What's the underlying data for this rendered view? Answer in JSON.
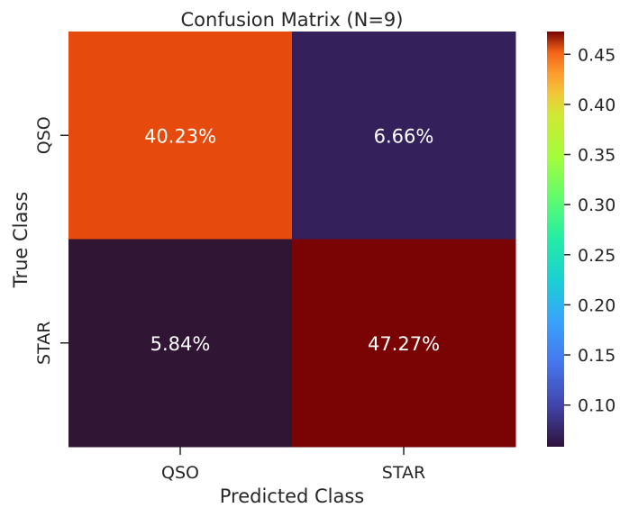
{
  "chart_data": {
    "type": "heatmap",
    "title": "Confusion Matrix (N=9)",
    "xlabel": "Predicted Class",
    "ylabel": "True Class",
    "x_categories": [
      "QSO",
      "STAR"
    ],
    "y_categories": [
      "QSO",
      "STAR"
    ],
    "values": [
      [
        0.4023,
        0.0666
      ],
      [
        0.0584,
        0.4727
      ]
    ],
    "cell_labels": [
      [
        "40.23%",
        "6.66%"
      ],
      [
        "5.84%",
        "47.27%"
      ]
    ],
    "colormap": "turbo",
    "colorbar": {
      "range": [
        0.0584,
        0.4727
      ],
      "ticks": [
        0.1,
        0.15,
        0.2,
        0.25,
        0.3,
        0.35,
        0.4,
        0.45
      ],
      "tick_labels": [
        "0.10",
        "0.15",
        "0.20",
        "0.25",
        "0.30",
        "0.35",
        "0.40",
        "0.45"
      ]
    },
    "cell_colors": [
      [
        "#e64a0c",
        "#34215c"
      ],
      [
        "#301535",
        "#7a0403"
      ]
    ],
    "cell_text_color": "#ffffff"
  }
}
